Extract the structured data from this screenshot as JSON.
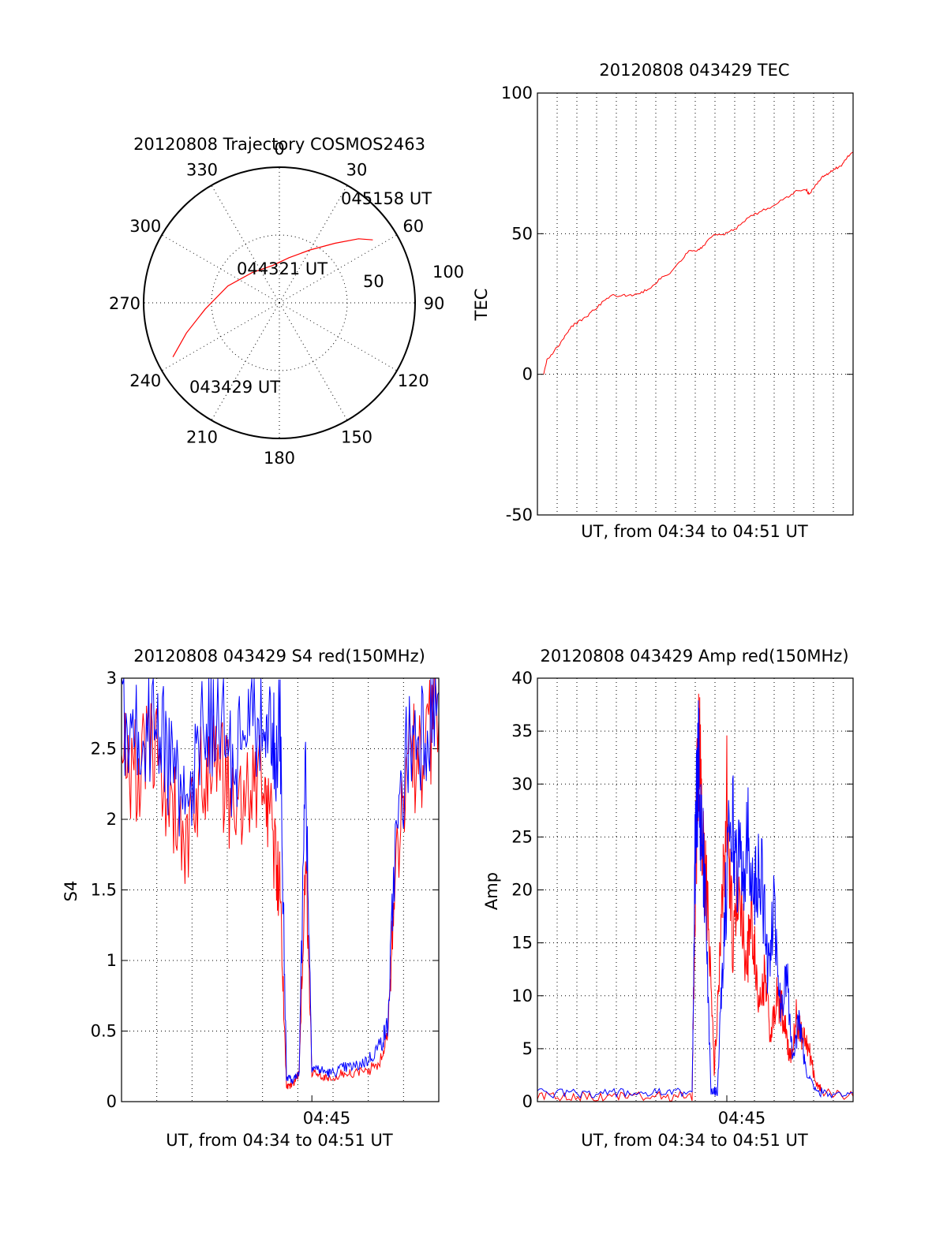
{
  "chart_data": [
    {
      "type": "polar",
      "title": "20120808 Trajectory COSMOS2463",
      "azimuth_labels": [
        "0",
        "30",
        "60",
        "90",
        "120",
        "150",
        "180",
        "210",
        "240",
        "270",
        "300",
        "330"
      ],
      "elevation_ring_labels": [
        "50",
        "100"
      ],
      "elevation_rings": [
        50,
        100
      ],
      "radial_max": 100,
      "series": [
        {
          "color": "#ff0000",
          "points": [
            {
              "az": 243,
              "r": 88
            },
            {
              "az": 252,
              "r": 72
            },
            {
              "az": 265,
              "r": 55
            },
            {
              "az": 288,
              "r": 40
            },
            {
              "az": 318,
              "r": 30
            },
            {
              "az": 350,
              "r": 28
            },
            {
              "az": 12,
              "r": 34
            },
            {
              "az": 30,
              "r": 45
            },
            {
              "az": 43,
              "r": 60
            },
            {
              "az": 51,
              "r": 75
            },
            {
              "az": 56,
              "r": 83
            }
          ]
        }
      ],
      "annotations": [
        "045158 UT",
        "044321 UT",
        "043429 UT"
      ]
    },
    {
      "type": "line",
      "title": "20120808 043429 TEC",
      "xlabel": "UT, from 04:34 to 04:51 UT",
      "ylabel": "TEC",
      "xlim": [
        0,
        1
      ],
      "ylim": [
        -50,
        100
      ],
      "yticks": [
        "100",
        "50",
        "0",
        "-50"
      ],
      "grid": true,
      "series": [
        {
          "color": "#ff0000",
          "x": [
            0.02,
            0.03,
            0.05,
            0.08,
            0.1,
            0.12,
            0.15,
            0.18,
            0.21,
            0.24,
            0.27,
            0.3,
            0.33,
            0.36,
            0.39,
            0.42,
            0.45,
            0.48,
            0.5,
            0.52,
            0.55,
            0.58,
            0.6,
            0.63,
            0.67,
            0.71,
            0.75,
            0.79,
            0.82,
            0.85,
            0.86,
            0.88,
            0.9,
            0.92,
            0.94,
            0.96,
            0.98,
            1.0
          ],
          "y": [
            0,
            5,
            8,
            12,
            16,
            18,
            20,
            23,
            26,
            28,
            28,
            28,
            29,
            31,
            34,
            36,
            40,
            44,
            44,
            45,
            49,
            50,
            50,
            52,
            56,
            58,
            60,
            63,
            65,
            66,
            64,
            67,
            70,
            71,
            73,
            74,
            77,
            79
          ]
        }
      ]
    },
    {
      "type": "line",
      "title": "20120808 043429 S4 red(150MHz)",
      "xlabel": "UT, from 04:34 to 04:51 UT",
      "ylabel": "S4",
      "xtick_label": "04:45",
      "xtick_position": 0.6,
      "ylim": [
        0,
        3
      ],
      "yticks": [
        "0",
        "0.5",
        "1",
        "1.5",
        "2",
        "2.5",
        "3"
      ],
      "grid": true,
      "series": [
        {
          "color": "#ff0000",
          "x": [
            0.0,
            0.05,
            0.1,
            0.15,
            0.2,
            0.25,
            0.3,
            0.35,
            0.4,
            0.45,
            0.48,
            0.5,
            0.52,
            0.54,
            0.56,
            0.58,
            0.6,
            0.63,
            0.66,
            0.7,
            0.74,
            0.78,
            0.82,
            0.84,
            0.86,
            0.9,
            0.95,
            1.0
          ],
          "y": [
            2.6,
            2.3,
            2.5,
            2.2,
            1.7,
            2.3,
            2.4,
            2.1,
            2.2,
            2.3,
            1.8,
            1.5,
            0.1,
            0.12,
            0.2,
            1.8,
            0.2,
            0.18,
            0.17,
            0.2,
            0.2,
            0.22,
            0.3,
            0.5,
            1.5,
            2.4,
            2.5,
            2.7
          ]
        },
        {
          "color": "#0000ff",
          "x": [
            0.0,
            0.05,
            0.1,
            0.15,
            0.2,
            0.25,
            0.3,
            0.35,
            0.4,
            0.45,
            0.48,
            0.5,
            0.52,
            0.54,
            0.56,
            0.58,
            0.6,
            0.63,
            0.66,
            0.7,
            0.74,
            0.78,
            0.82,
            0.84,
            0.86,
            0.9,
            0.95,
            1.0
          ],
          "y": [
            2.8,
            2.5,
            2.7,
            2.4,
            2.0,
            2.6,
            2.7,
            2.4,
            2.6,
            2.8,
            2.5,
            2.6,
            0.17,
            0.15,
            0.22,
            2.4,
            0.25,
            0.22,
            0.2,
            0.24,
            0.25,
            0.3,
            0.42,
            0.55,
            1.7,
            2.5,
            2.7,
            2.9
          ]
        }
      ]
    },
    {
      "type": "line",
      "title": "20120808 043429 Amp red(150MHz)",
      "xlabel": "UT, from 04:34 to 04:51 UT",
      "ylabel": "Amp",
      "xtick_label": "04:45",
      "xtick_position": 0.6,
      "ylim": [
        0,
        40
      ],
      "yticks": [
        "0",
        "5",
        "10",
        "15",
        "20",
        "25",
        "30",
        "35",
        "40"
      ],
      "grid": true,
      "series": [
        {
          "color": "#ff0000",
          "x": [
            0.0,
            0.1,
            0.2,
            0.3,
            0.4,
            0.49,
            0.5,
            0.51,
            0.52,
            0.54,
            0.56,
            0.58,
            0.6,
            0.62,
            0.64,
            0.66,
            0.68,
            0.7,
            0.72,
            0.74,
            0.76,
            0.78,
            0.8,
            0.82,
            0.84,
            0.86,
            0.88,
            0.9,
            1.0
          ],
          "y": [
            0.5,
            0.5,
            0.5,
            0.5,
            0.5,
            0.5,
            20,
            35,
            28,
            18,
            3,
            15,
            30,
            14,
            22,
            12,
            18,
            8,
            12,
            6,
            10,
            8,
            4,
            8,
            6,
            5,
            2,
            1,
            0.5
          ]
        },
        {
          "color": "#0000ff",
          "x": [
            0.0,
            0.1,
            0.2,
            0.3,
            0.4,
            0.49,
            0.5,
            0.51,
            0.52,
            0.53,
            0.55,
            0.57,
            0.59,
            0.61,
            0.63,
            0.65,
            0.67,
            0.69,
            0.71,
            0.73,
            0.75,
            0.77,
            0.79,
            0.81,
            0.83,
            0.85,
            0.88,
            0.92,
            1.0
          ],
          "y": [
            0.8,
            0.8,
            0.8,
            0.8,
            0.8,
            0.9,
            24,
            33,
            26,
            20,
            1,
            1,
            15,
            28,
            23,
            22,
            25,
            20,
            22,
            12,
            18,
            9,
            12,
            4,
            8,
            3,
            1,
            0.8,
            0.8
          ]
        }
      ]
    }
  ]
}
